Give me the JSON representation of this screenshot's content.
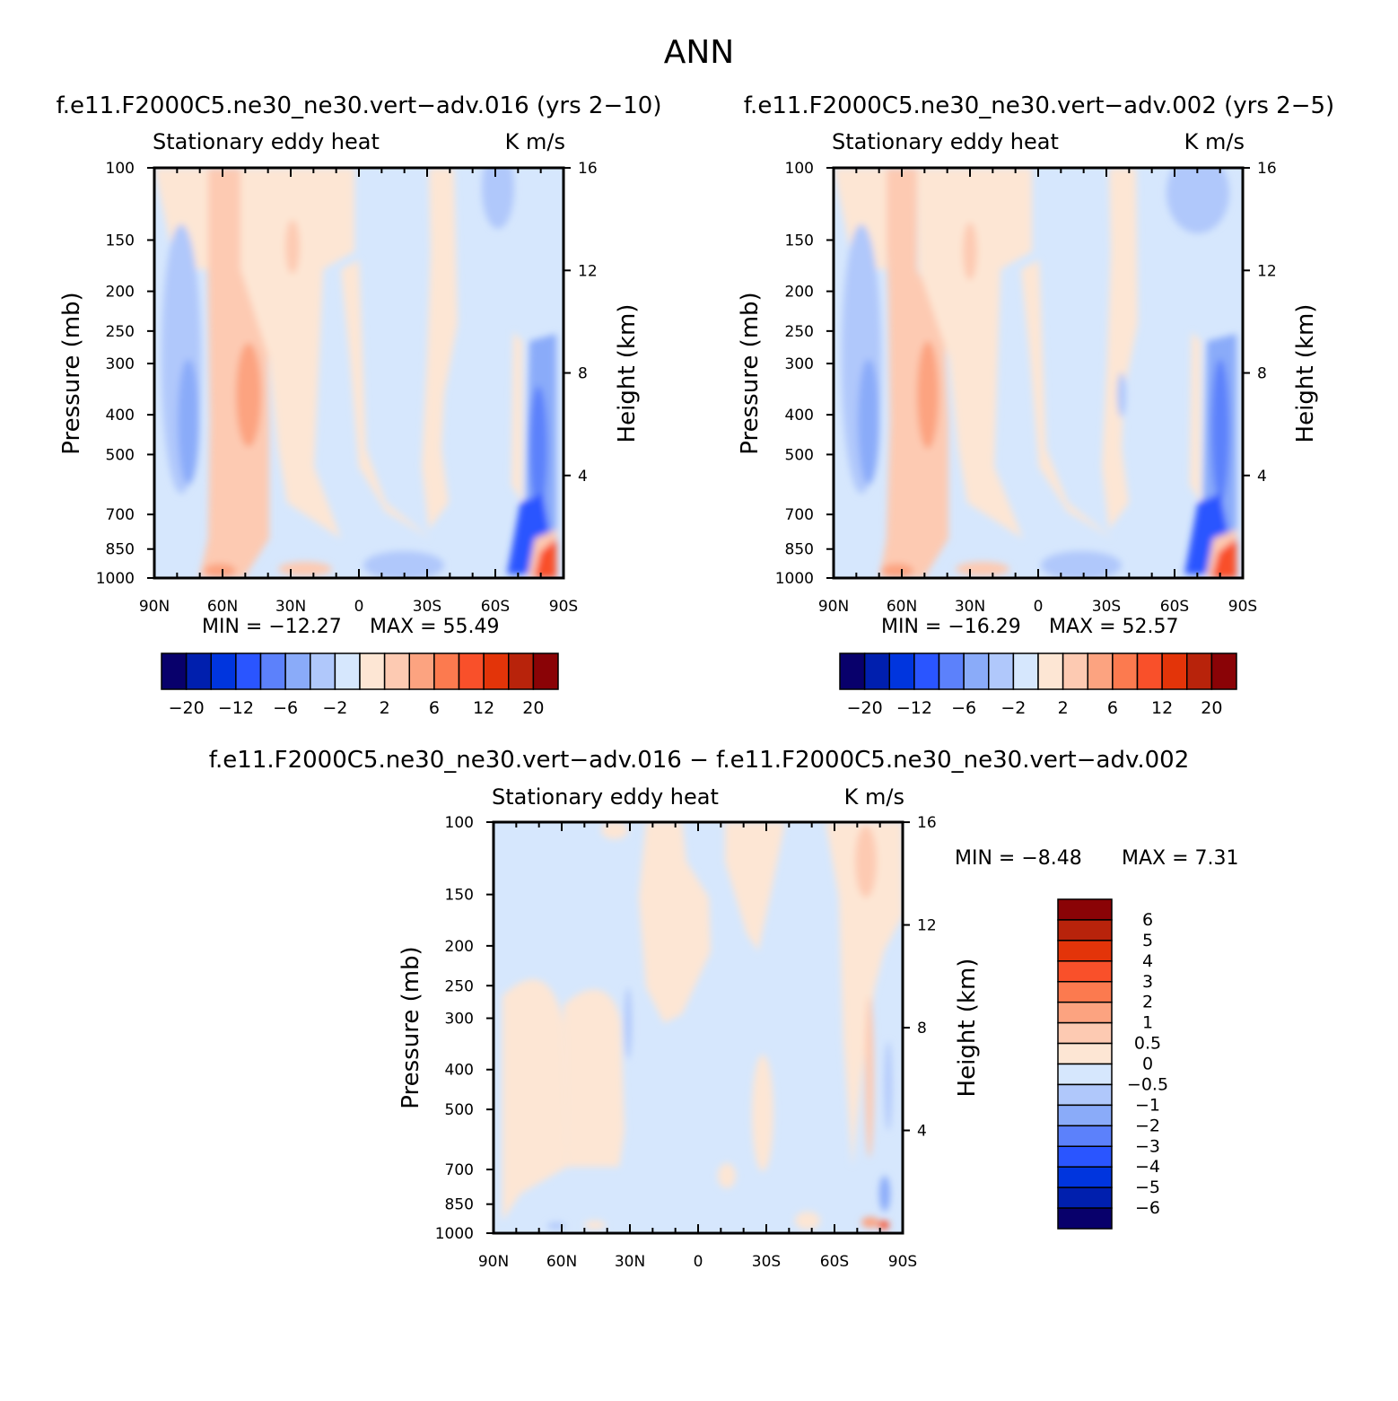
{
  "figure": {
    "title": "ANN"
  },
  "panels": [
    {
      "id": "case1",
      "title": "f.e11.F2000C5.ne30_ne30.vert−adv.016 (yrs 2−10)",
      "left_label": "Stationary eddy heat",
      "right_label": "K m/s",
      "ylabel": "Pressure (mb)",
      "y2label": "Height (km)",
      "min_text": "MIN = −12.27",
      "max_text": "MAX =  55.49"
    },
    {
      "id": "case2",
      "title": "f.e11.F2000C5.ne30_ne30.vert−adv.002 (yrs 2−5)",
      "left_label": "Stationary eddy heat",
      "right_label": "K m/s",
      "ylabel": "Pressure (mb)",
      "y2label": "Height (km)",
      "min_text": "MIN = −16.29",
      "max_text": "MAX =  52.57"
    },
    {
      "id": "diff",
      "title": "f.e11.F2000C5.ne30_ne30.vert−adv.016 − f.e11.F2000C5.ne30_ne30.vert−adv.002",
      "left_label": "Stationary eddy heat",
      "right_label": "K m/s",
      "ylabel": "Pressure (mb)",
      "y2label": "Height (km)",
      "min_text": "MIN =   −8.48",
      "max_text": "MAX =    7.31"
    }
  ],
  "colorbars": {
    "main": {
      "colors": [
        "#08006b",
        "#001fae",
        "#0035de",
        "#2a55ff",
        "#5c81fb",
        "#8aabf9",
        "#b0c8fb",
        "#d6e7fd",
        "#fde6d4",
        "#fdcab2",
        "#fca380",
        "#fc7a4f",
        "#f9502a",
        "#e33409",
        "#b8230b",
        "#8a0306"
      ],
      "tick_labels": [
        "−20",
        "−12",
        "−6",
        "−2",
        "2",
        "6",
        "12",
        "20"
      ]
    },
    "diff": {
      "colors": [
        "#08006b",
        "#001fae",
        "#0035de",
        "#2a55ff",
        "#5c81fb",
        "#8aabf9",
        "#b0c8fb",
        "#d6e7fd",
        "#fde6d4",
        "#fdcab2",
        "#fca380",
        "#fc7a4f",
        "#f9502a",
        "#e33409",
        "#b8230b",
        "#8a0306"
      ],
      "tick_labels": [
        "6",
        "5",
        "4",
        "3",
        "2",
        "1",
        "0.5",
        "0",
        "−0.5",
        "−1",
        "−2",
        "−3",
        "−4",
        "−5",
        "−6"
      ]
    }
  },
  "chart_data": [
    {
      "type": "heatmap",
      "title": "f.e11.F2000C5.ne30_ne30.vert−adv.016 (yrs 2−10)",
      "variable": "Stationary eddy heat",
      "units": "K m/s",
      "x_ticks": [
        "90N",
        "60N",
        "30N",
        "0",
        "30S",
        "60S",
        "90S"
      ],
      "x_range": [
        90,
        -90
      ],
      "y_ticks": [
        100,
        150,
        200,
        250,
        300,
        400,
        500,
        700,
        850,
        1000
      ],
      "y_range": [
        100,
        1000
      ],
      "y_scale": "log",
      "y2_ticks": [
        16,
        12,
        8,
        4
      ],
      "xlabel": "",
      "ylabel": "Pressure (mb)",
      "y2label": "Height (km)",
      "min": -12.27,
      "max": 55.49,
      "contour_levels": [
        -20,
        -16,
        -12,
        -9,
        -6,
        -4,
        -2,
        0,
        2,
        4,
        6,
        9,
        12,
        16,
        20
      ]
    },
    {
      "type": "heatmap",
      "title": "f.e11.F2000C5.ne30_ne30.vert−adv.002 (yrs 2−5)",
      "variable": "Stationary eddy heat",
      "units": "K m/s",
      "x_ticks": [
        "90N",
        "60N",
        "30N",
        "0",
        "30S",
        "60S",
        "90S"
      ],
      "x_range": [
        90,
        -90
      ],
      "y_ticks": [
        100,
        150,
        200,
        250,
        300,
        400,
        500,
        700,
        850,
        1000
      ],
      "y_range": [
        100,
        1000
      ],
      "y_scale": "log",
      "y2_ticks": [
        16,
        12,
        8,
        4
      ],
      "xlabel": "",
      "ylabel": "Pressure (mb)",
      "y2label": "Height (km)",
      "min": -16.29,
      "max": 52.57,
      "contour_levels": [
        -20,
        -16,
        -12,
        -9,
        -6,
        -4,
        -2,
        0,
        2,
        4,
        6,
        9,
        12,
        16,
        20
      ]
    },
    {
      "type": "heatmap",
      "title": "f.e11.F2000C5.ne30_ne30.vert−adv.016 − f.e11.F2000C5.ne30_ne30.vert−adv.002",
      "variable": "Stationary eddy heat",
      "units": "K m/s",
      "x_ticks": [
        "90N",
        "60N",
        "30N",
        "0",
        "30S",
        "60S",
        "90S"
      ],
      "x_range": [
        90,
        -90
      ],
      "y_ticks": [
        100,
        150,
        200,
        250,
        300,
        400,
        500,
        700,
        850,
        1000
      ],
      "y_range": [
        100,
        1000
      ],
      "y_scale": "log",
      "y2_ticks": [
        16,
        12,
        8,
        4
      ],
      "xlabel": "",
      "ylabel": "Pressure (mb)",
      "y2label": "Height (km)",
      "min": -8.48,
      "max": 7.31,
      "contour_levels": [
        -6,
        -5,
        -4,
        -3,
        -2,
        -1,
        -0.5,
        0,
        0.5,
        1,
        2,
        3,
        4,
        5,
        6
      ]
    }
  ]
}
